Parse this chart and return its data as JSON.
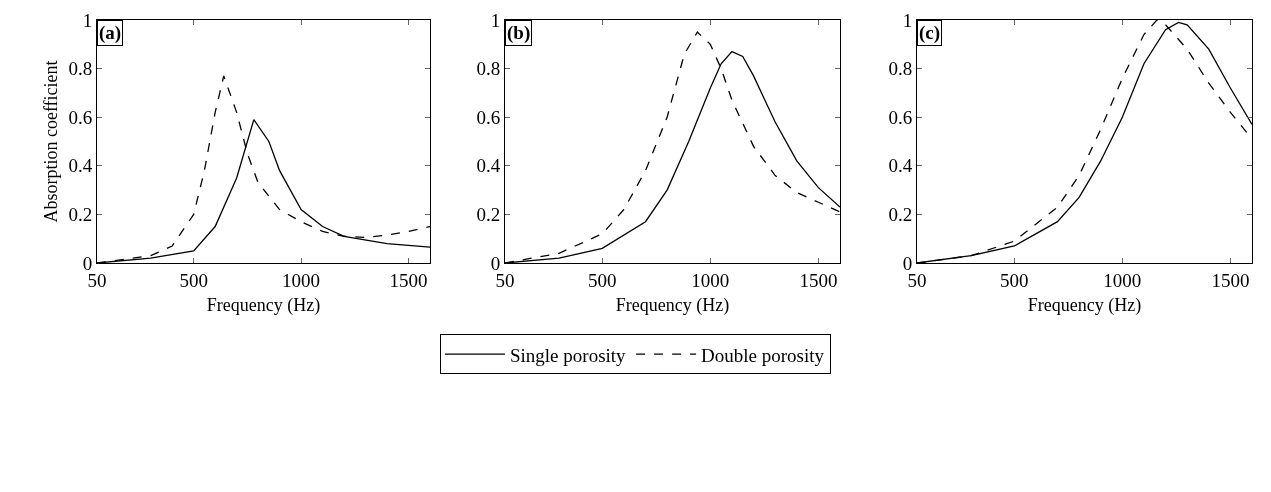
{
  "chart_data": [
    {
      "type": "line",
      "xlabel": "Frequency (Hz)",
      "ylabel": "Absorption coefficient",
      "annotations": [
        "(a)"
      ],
      "xlim": [
        50,
        1600
      ],
      "ylim": [
        0,
        1
      ],
      "xticks": [
        50,
        500,
        1000,
        1500
      ],
      "yticks": [
        0,
        0.2,
        0.4,
        0.6,
        0.8,
        1
      ],
      "legend": "bottom",
      "marker": "none",
      "series": [
        {
          "name": "Single porosity",
          "color": "#000000",
          "line_style": "solid",
          "x": [
            50,
            300,
            500,
            600,
            700,
            780,
            850,
            900,
            1000,
            1100,
            1200,
            1400,
            1600
          ],
          "values": [
            0,
            0.02,
            0.05,
            0.15,
            0.35,
            0.59,
            0.5,
            0.38,
            0.22,
            0.15,
            0.11,
            0.08,
            0.065
          ]
        },
        {
          "name": "Double porosity",
          "color": "#000000",
          "line_style": "dashed",
          "x": [
            50,
            300,
            400,
            500,
            550,
            600,
            640,
            700,
            750,
            800,
            900,
            1000,
            1100,
            1200,
            1300,
            1400,
            1500,
            1600
          ],
          "values": [
            0,
            0.03,
            0.07,
            0.2,
            0.38,
            0.62,
            0.77,
            0.62,
            0.45,
            0.33,
            0.22,
            0.17,
            0.13,
            0.11,
            0.105,
            0.115,
            0.13,
            0.15
          ]
        }
      ]
    },
    {
      "type": "line",
      "xlabel": "Frequency (Hz)",
      "annotations": [
        "(b)"
      ],
      "xlim": [
        50,
        1600
      ],
      "ylim": [
        0,
        1
      ],
      "xticks": [
        50,
        500,
        1000,
        1500
      ],
      "yticks": [
        0,
        0.2,
        0.4,
        0.6,
        0.8,
        1
      ],
      "legend": "bottom",
      "marker": "none",
      "series": [
        {
          "name": "Single porosity",
          "color": "#000000",
          "line_style": "solid",
          "x": [
            50,
            300,
            500,
            700,
            800,
            900,
            1000,
            1050,
            1100,
            1150,
            1200,
            1300,
            1400,
            1500,
            1600
          ],
          "values": [
            0,
            0.02,
            0.06,
            0.17,
            0.3,
            0.5,
            0.72,
            0.82,
            0.87,
            0.85,
            0.77,
            0.58,
            0.42,
            0.31,
            0.23
          ]
        },
        {
          "name": "Double porosity",
          "color": "#000000",
          "line_style": "dashed",
          "x": [
            50,
            300,
            500,
            600,
            700,
            800,
            880,
            940,
            1000,
            1050,
            1100,
            1200,
            1300,
            1400,
            1500,
            1600
          ],
          "values": [
            0,
            0.04,
            0.12,
            0.22,
            0.38,
            0.6,
            0.86,
            0.95,
            0.9,
            0.8,
            0.67,
            0.48,
            0.36,
            0.29,
            0.25,
            0.21
          ]
        }
      ]
    },
    {
      "type": "line",
      "xlabel": "Frequency (Hz)",
      "annotations": [
        "(c)"
      ],
      "xlim": [
        50,
        1600
      ],
      "ylim": [
        0,
        1
      ],
      "xticks": [
        50,
        500,
        1000,
        1500
      ],
      "yticks": [
        0,
        0.2,
        0.4,
        0.6,
        0.8,
        1
      ],
      "legend": "bottom",
      "marker": "none",
      "series": [
        {
          "name": "Single porosity",
          "color": "#000000",
          "line_style": "solid",
          "x": [
            50,
            300,
            500,
            700,
            800,
            900,
            1000,
            1100,
            1200,
            1260,
            1300,
            1400,
            1500,
            1600
          ],
          "values": [
            0,
            0.03,
            0.07,
            0.17,
            0.27,
            0.42,
            0.6,
            0.82,
            0.96,
            0.99,
            0.98,
            0.88,
            0.72,
            0.57
          ]
        },
        {
          "name": "Double porosity",
          "color": "#000000",
          "line_style": "dashed",
          "x": [
            50,
            300,
            500,
            700,
            800,
            900,
            1000,
            1100,
            1160,
            1200,
            1300,
            1400,
            1500,
            1600
          ],
          "values": [
            0,
            0.03,
            0.09,
            0.23,
            0.36,
            0.55,
            0.76,
            0.94,
            1.0,
            0.98,
            0.88,
            0.74,
            0.62,
            0.51
          ]
        }
      ]
    }
  ]
}
